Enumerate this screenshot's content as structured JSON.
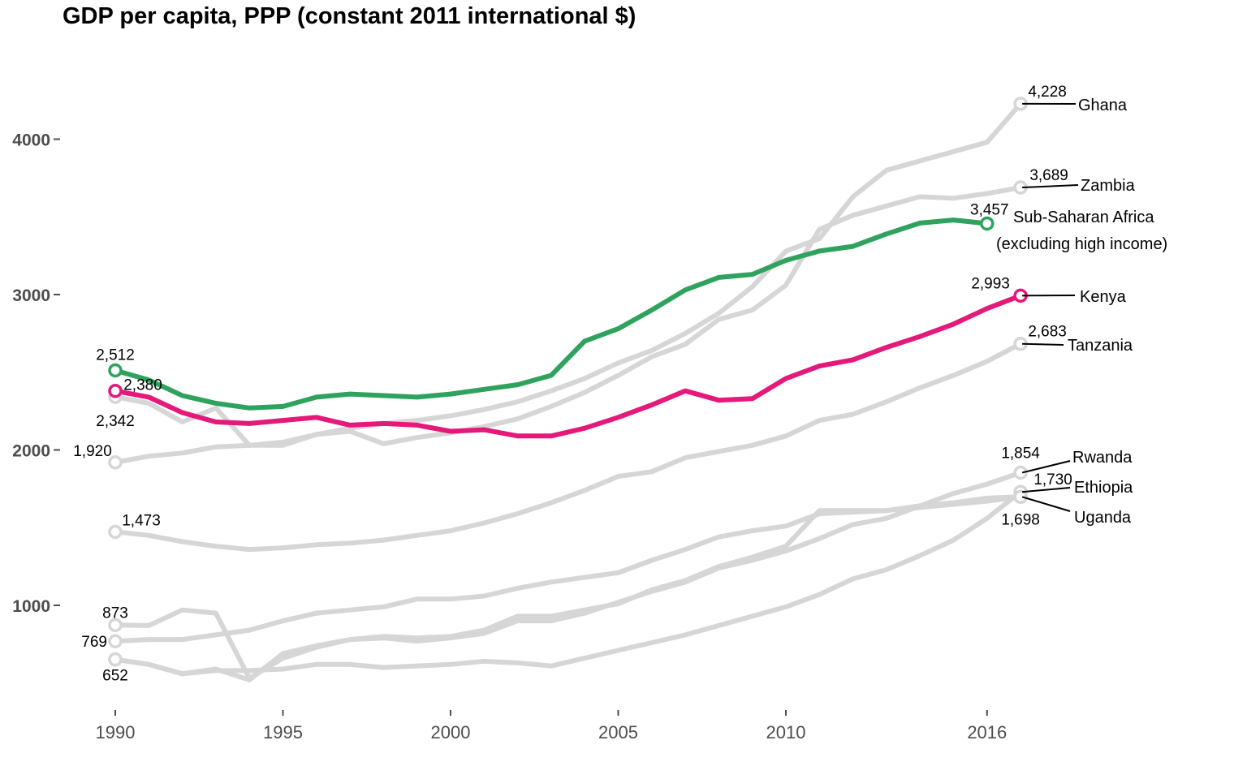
{
  "chart_data": {
    "type": "line",
    "title": "GDP per capita, PPP (constant 2011 international $)",
    "xlabel": "",
    "ylabel": "",
    "x_ticks": [
      "1990",
      "1995",
      "2000",
      "2005",
      "2010",
      "2016"
    ],
    "x_tick_values": [
      1990,
      1995,
      2000,
      2005,
      2010,
      2016
    ],
    "y_ticks": [
      "1000",
      "2000",
      "3000",
      "4000"
    ],
    "y_tick_values": [
      1000,
      2000,
      3000,
      4000
    ],
    "xlim": [
      1990,
      2017
    ],
    "ylim": [
      500,
      4300
    ],
    "grid": false,
    "legend": "none",
    "colors": {
      "highlight_region": "#2fa35d",
      "highlight_country": "#e5197a",
      "other": "#d6d6d6"
    },
    "series": [
      {
        "name": "Ghana",
        "start_label": "1,920",
        "end_label": "4,228",
        "color": "#d6d6d6",
        "x": [
          1990,
          1991,
          1992,
          1993,
          1994,
          1995,
          1996,
          1997,
          1998,
          1999,
          2000,
          2001,
          2002,
          2003,
          2004,
          2005,
          2006,
          2007,
          2008,
          2009,
          2010,
          2011,
          2012,
          2013,
          2014,
          2015,
          2016,
          2017
        ],
        "values": [
          1920,
          1960,
          1980,
          2020,
          2030,
          2050,
          2100,
          2140,
          2170,
          2190,
          2220,
          2260,
          2310,
          2380,
          2460,
          2560,
          2640,
          2750,
          2880,
          3050,
          3280,
          3360,
          3630,
          3800,
          3860,
          3920,
          3980,
          4228
        ]
      },
      {
        "name": "Zambia",
        "start_label": "2,342",
        "end_label": "3,689",
        "color": "#d6d6d6",
        "x": [
          1990,
          1991,
          1992,
          1993,
          1994,
          1995,
          1996,
          1997,
          1998,
          1999,
          2000,
          2001,
          2002,
          2003,
          2004,
          2005,
          2006,
          2007,
          2008,
          2009,
          2010,
          2011,
          2012,
          2013,
          2014,
          2015,
          2016,
          2017
        ],
        "values": [
          2342,
          2300,
          2180,
          2270,
          2030,
          2030,
          2100,
          2120,
          2040,
          2080,
          2110,
          2150,
          2200,
          2280,
          2370,
          2480,
          2600,
          2680,
          2840,
          2900,
          3060,
          3420,
          3510,
          3570,
          3630,
          3620,
          3650,
          3689
        ]
      },
      {
        "name": "Tanzania",
        "start_label": "1,473",
        "end_label": "2,683",
        "color": "#d6d6d6",
        "x": [
          1990,
          1991,
          1992,
          1993,
          1994,
          1995,
          1996,
          1997,
          1998,
          1999,
          2000,
          2001,
          2002,
          2003,
          2004,
          2005,
          2006,
          2007,
          2008,
          2009,
          2010,
          2011,
          2012,
          2013,
          2014,
          2015,
          2016,
          2017
        ],
        "values": [
          1473,
          1450,
          1410,
          1380,
          1360,
          1370,
          1390,
          1400,
          1420,
          1450,
          1480,
          1530,
          1590,
          1660,
          1740,
          1830,
          1860,
          1950,
          1990,
          2030,
          2090,
          2190,
          2230,
          2310,
          2400,
          2480,
          2570,
          2683
        ]
      },
      {
        "name": "Rwanda",
        "start_label": "652",
        "end_label": "1,854",
        "color": "#d6d6d6",
        "x": [
          1990,
          1991,
          1992,
          1993,
          1994,
          1995,
          1996,
          1997,
          1998,
          1999,
          2000,
          2001,
          2002,
          2003,
          2004,
          2005,
          2006,
          2007,
          2008,
          2009,
          2010,
          2011,
          2012,
          2013,
          2014,
          2015,
          2016,
          2017
        ],
        "values": [
          652,
          620,
          560,
          590,
          520,
          690,
          740,
          780,
          790,
          770,
          790,
          820,
          900,
          900,
          950,
          1020,
          1090,
          1150,
          1240,
          1290,
          1350,
          1430,
          1520,
          1560,
          1640,
          1720,
          1780,
          1854
        ]
      },
      {
        "name": "Ethiopia",
        "start_label": "",
        "end_label": "1,730",
        "color": "#d6d6d6",
        "x": [
          1990,
          1991,
          1992,
          1993,
          1994,
          1995,
          1996,
          1997,
          1998,
          1999,
          2000,
          2001,
          2002,
          2003,
          2004,
          2005,
          2006,
          2007,
          2008,
          2009,
          2010,
          2011,
          2012,
          2013,
          2014,
          2015,
          2016,
          2017
        ],
        "values": [
          652,
          620,
          560,
          580,
          580,
          590,
          620,
          620,
          600,
          610,
          620,
          640,
          630,
          610,
          660,
          710,
          760,
          810,
          870,
          930,
          990,
          1070,
          1170,
          1230,
          1320,
          1420,
          1560,
          1730
        ]
      },
      {
        "name": "Uganda",
        "start_label": "873",
        "end_label": "1,698",
        "color": "#d6d6d6",
        "x": [
          1990,
          1991,
          1992,
          1993,
          1994,
          1995,
          1996,
          1997,
          1998,
          1999,
          2000,
          2001,
          2002,
          2003,
          2004,
          2005,
          2006,
          2007,
          2008,
          2009,
          2010,
          2011,
          2012,
          2013,
          2014,
          2015,
          2016,
          2017
        ],
        "values": [
          873,
          870,
          970,
          950,
          530,
          660,
          730,
          780,
          800,
          790,
          800,
          840,
          930,
          930,
          970,
          1010,
          1100,
          1160,
          1250,
          1310,
          1380,
          1610,
          1610,
          1610,
          1640,
          1660,
          1690,
          1698
        ]
      },
      {
        "name": "",
        "start_label": "769",
        "end_label": "",
        "color": "#d6d6d6",
        "x": [
          1990,
          1991,
          1992,
          1993,
          1994,
          1995,
          1996,
          1997,
          1998,
          1999,
          2000,
          2001,
          2002,
          2003,
          2004,
          2005,
          2006,
          2007,
          2008,
          2009,
          2010,
          2011,
          2012,
          2013,
          2014,
          2015,
          2016,
          2017
        ],
        "values": [
          769,
          780,
          780,
          810,
          840,
          900,
          950,
          970,
          990,
          1040,
          1040,
          1060,
          1110,
          1150,
          1180,
          1210,
          1290,
          1360,
          1440,
          1480,
          1510,
          1590,
          1600,
          1610,
          1630,
          1650,
          1670,
          1698
        ]
      },
      {
        "name": "Sub-Saharan Africa",
        "name_line2": "(excluding high income)",
        "start_label": "2,512",
        "end_label": "3,457",
        "color": "#2fa35d",
        "x": [
          1990,
          1991,
          1992,
          1993,
          1994,
          1995,
          1996,
          1997,
          1998,
          1999,
          2000,
          2001,
          2002,
          2003,
          2004,
          2005,
          2006,
          2007,
          2008,
          2009,
          2010,
          2011,
          2012,
          2013,
          2014,
          2015,
          2016
        ],
        "values": [
          2512,
          2450,
          2350,
          2300,
          2270,
          2280,
          2340,
          2360,
          2350,
          2340,
          2360,
          2390,
          2420,
          2480,
          2700,
          2780,
          2900,
          3030,
          3110,
          3130,
          3220,
          3280,
          3310,
          3390,
          3460,
          3480,
          3457
        ]
      },
      {
        "name": "Kenya",
        "start_label": "2,380",
        "end_label": "2,993",
        "color": "#e5197a",
        "x": [
          1990,
          1991,
          1992,
          1993,
          1994,
          1995,
          1996,
          1997,
          1998,
          1999,
          2000,
          2001,
          2002,
          2003,
          2004,
          2005,
          2006,
          2007,
          2008,
          2009,
          2010,
          2011,
          2012,
          2013,
          2014,
          2015,
          2016,
          2017
        ],
        "values": [
          2380,
          2340,
          2240,
          2180,
          2170,
          2190,
          2210,
          2160,
          2170,
          2160,
          2120,
          2130,
          2090,
          2090,
          2140,
          2210,
          2290,
          2380,
          2320,
          2330,
          2460,
          2540,
          2580,
          2660,
          2730,
          2810,
          2910,
          2993
        ]
      }
    ]
  }
}
